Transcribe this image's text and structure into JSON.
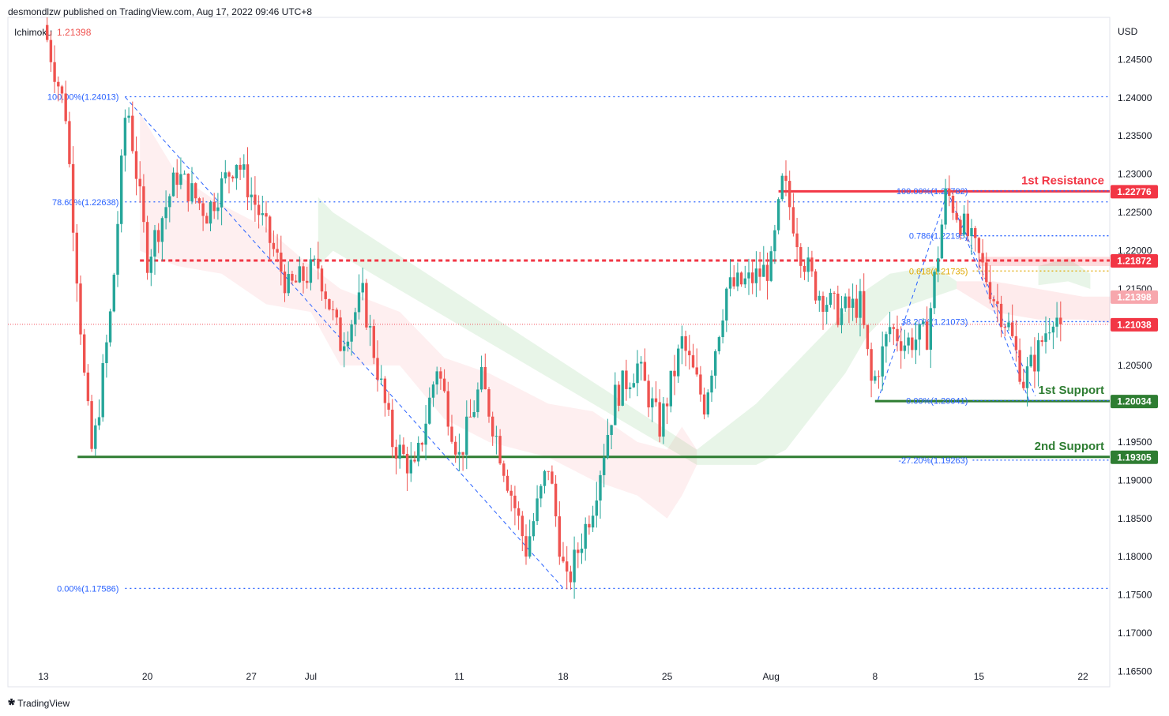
{
  "header": {
    "published_text": "desmondlzw published on TradingView.com, Aug 17, 2022 09:46 UTC+8"
  },
  "indicator": {
    "name": "Ichimoku",
    "value": "1.21398"
  },
  "footer": {
    "brand": "TradingView"
  },
  "chart_data": {
    "type": "candlestick",
    "currency": "USD",
    "ylim": [
      1.163,
      1.2505
    ],
    "y_ticks": [
      "1.24500",
      "1.24000",
      "1.23500",
      "1.23000",
      "1.22500",
      "1.22000",
      "1.21500",
      "1.21000",
      "1.20500",
      "1.20000",
      "1.19500",
      "1.19000",
      "1.18500",
      "1.18000",
      "1.17500",
      "1.17000",
      "1.16500"
    ],
    "x_ticks": [
      {
        "label": "13",
        "day": 0
      },
      {
        "label": "20",
        "day": 7
      },
      {
        "label": "27",
        "day": 14
      },
      {
        "label": "Jul",
        "day": 18
      },
      {
        "label": "11",
        "day": 28
      },
      {
        "label": "18",
        "day": 35
      },
      {
        "label": "25",
        "day": 42
      },
      {
        "label": "Aug",
        "day": 49
      },
      {
        "label": "8",
        "day": 56
      },
      {
        "label": "15",
        "day": 63
      },
      {
        "label": "22",
        "day": 70
      }
    ],
    "price_path": [
      [
        0,
        1.2495
      ],
      [
        1.5,
        1.238
      ],
      [
        2.8,
        1.202
      ],
      [
        3.3,
        1.193
      ],
      [
        4.6,
        1.213
      ],
      [
        5.6,
        1.2401
      ],
      [
        7,
        1.219
      ],
      [
        9,
        1.23
      ],
      [
        11,
        1.225
      ],
      [
        13,
        1.232
      ],
      [
        14.5,
        1.225
      ],
      [
        16.5,
        1.215
      ],
      [
        18.5,
        1.218
      ],
      [
        20,
        1.208
      ],
      [
        21.5,
        1.214
      ],
      [
        23.5,
        1.195
      ],
      [
        25,
        1.191
      ],
      [
        26.5,
        1.205
      ],
      [
        28,
        1.193
      ],
      [
        29.5,
        1.203
      ],
      [
        31,
        1.192
      ],
      [
        32.5,
        1.181
      ],
      [
        34,
        1.192
      ],
      [
        35.2,
        1.1759
      ],
      [
        37,
        1.187
      ],
      [
        38.5,
        1.201
      ],
      [
        40,
        1.205
      ],
      [
        41.5,
        1.197
      ],
      [
        43,
        1.208
      ],
      [
        44.5,
        1.2
      ],
      [
        46,
        1.215
      ],
      [
        47.5,
        1.216
      ],
      [
        49,
        1.218
      ],
      [
        49.8,
        1.2293
      ],
      [
        51,
        1.22
      ],
      [
        52,
        1.215
      ],
      [
        53.5,
        1.212
      ],
      [
        55,
        1.213
      ],
      [
        55.8,
        1.202
      ],
      [
        57,
        1.21
      ],
      [
        58,
        1.208
      ],
      [
        59.5,
        1.209
      ],
      [
        60.8,
        1.2278
      ],
      [
        62,
        1.223
      ],
      [
        63,
        1.219
      ],
      [
        64,
        1.214
      ],
      [
        65,
        1.21
      ],
      [
        66,
        1.203
      ],
      [
        66.8,
        1.206
      ],
      [
        68,
        1.212
      ],
      [
        68.6,
        1.2104
      ]
    ],
    "ichimoku_cloud_bearish": [
      [
        6.5,
        1.238,
        1.22
      ],
      [
        9,
        1.23,
        1.218
      ],
      [
        12,
        1.226,
        1.217
      ],
      [
        15,
        1.223,
        1.213
      ],
      [
        18,
        1.218,
        1.212
      ],
      [
        20,
        1.215,
        1.205
      ],
      [
        24,
        1.212,
        1.205
      ],
      [
        27,
        1.206,
        1.198
      ],
      [
        30,
        1.204,
        1.195
      ],
      [
        34,
        1.2,
        1.193
      ],
      [
        37,
        1.199,
        1.19
      ],
      [
        40,
        1.195,
        1.188
      ],
      [
        42,
        1.194,
        1.185
      ],
      [
        43,
        1.197,
        1.188
      ],
      [
        44,
        1.194,
        1.192
      ]
    ],
    "ichimoku_cloud_bullish": [
      [
        18.5,
        1.227,
        1.218
      ],
      [
        19.5,
        1.225,
        1.22
      ],
      [
        44,
        1.194,
        1.192
      ],
      [
        46,
        1.197,
        1.192
      ],
      [
        48,
        1.2,
        1.192
      ],
      [
        50,
        1.204,
        1.194
      ],
      [
        52,
        1.208,
        1.199
      ],
      [
        54,
        1.212,
        1.204
      ],
      [
        55.5,
        1.215,
        1.209
      ],
      [
        57,
        1.217,
        1.212
      ],
      [
        60,
        1.218,
        1.214
      ],
      [
        61.5,
        1.216,
        1.215
      ]
    ],
    "ichimoku_cloud_bearish_2": [
      [
        61.5,
        1.216,
        1.215
      ],
      [
        64,
        1.216,
        1.212
      ],
      [
        67,
        1.215,
        1.211
      ],
      [
        70,
        1.214,
        1.211
      ],
      [
        72,
        1.214,
        1.2105
      ]
    ],
    "ichimoku_cloud_bullish_2": [
      [
        67,
        1.218,
        1.2155
      ],
      [
        69,
        1.219,
        1.216
      ],
      [
        70.5,
        1.217,
        1.215
      ]
    ],
    "horizontal_levels": [
      {
        "label": "1st Resistance",
        "price": 1.22776,
        "tag": "1.22776",
        "color": "#f23645",
        "style": "solid",
        "from_day": 49.5
      },
      {
        "label": "",
        "price": 1.21872,
        "tag": "1.21872",
        "color": "#f23645",
        "style": "dashed",
        "from_day": 6.5
      },
      {
        "label": "1st Support",
        "price": 1.20034,
        "tag": "1.20034",
        "color": "#2e7d32",
        "style": "solid",
        "from_day": 56
      },
      {
        "label": "2nd Support",
        "price": 1.19305,
        "tag": "1.19305",
        "color": "#2e7d32",
        "style": "solid",
        "from_day": 2.3
      }
    ],
    "price_tags": [
      {
        "price": 1.21398,
        "text": "1.21398",
        "color": "#f7a7ad"
      },
      {
        "price": 1.21038,
        "text": "1.21038",
        "color": "#f23645"
      }
    ],
    "current_price": 1.21038,
    "fib_main": {
      "from_day": 5.5,
      "levels": [
        {
          "text": "100.00%(1.24013)",
          "price": 1.24013
        },
        {
          "text": "78.60%(1.22638)",
          "price": 1.22638
        },
        {
          "text": "0.00%(1.17586)",
          "price": 1.17586
        }
      ],
      "color": "#2962ff"
    },
    "fib_recent": {
      "from_day": 56.3,
      "levels": [
        {
          "text": "100.00%(1.22782)",
          "price": 1.22782,
          "color": "#2962ff"
        },
        {
          "text": "0.786(1.22195)",
          "price": 1.22195,
          "color": "#2962ff"
        },
        {
          "text": "0.618(1.21735)",
          "price": 1.21735,
          "color": "#e0a800"
        },
        {
          "text": "38.20%(1.21073)",
          "price": 1.21073,
          "color": "#2962ff"
        },
        {
          "text": "0.00%(1.20041)",
          "price": 1.20041,
          "color": "#2962ff"
        },
        {
          "text": "-27.20%(1.19263)",
          "price": 1.19263,
          "color": "#2962ff"
        }
      ]
    },
    "trend_lines": [
      [
        [
          5.5,
          1.2401
        ],
        [
          35,
          1.1759
        ]
      ],
      [
        [
          56.2,
          1.2005
        ],
        [
          60.9,
          1.2278
        ]
      ],
      [
        [
          60.9,
          1.2278
        ],
        [
          66.4,
          1.2003
        ]
      ],
      [
        [
          61.5,
          1.225
        ],
        [
          66.8,
          1.201
        ]
      ]
    ]
  }
}
